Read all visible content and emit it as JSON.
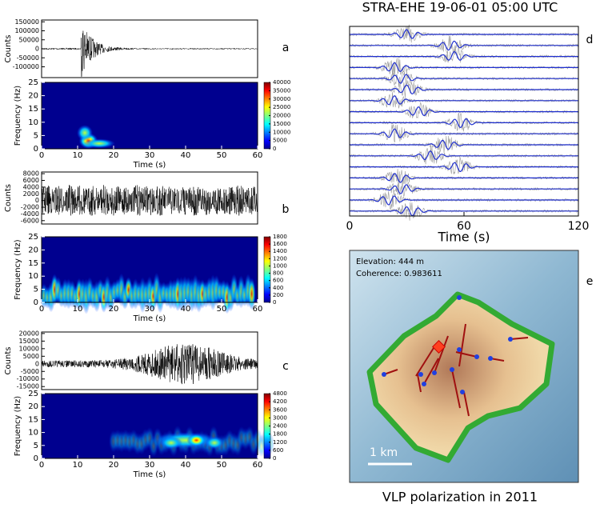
{
  "panels": [
    {
      "label": "a",
      "waveform": {
        "ylabel": "Counts",
        "ylim": [
          -160000,
          160000
        ],
        "yticks": [
          150000,
          100000,
          50000,
          0,
          -50000,
          -100000
        ]
      },
      "spectrogram": {
        "ylabel": "Frequency (Hz)",
        "xlabel": "Time (s)",
        "xlim": [
          0,
          60
        ],
        "ylim": [
          0,
          25
        ],
        "xticks": [
          0,
          10,
          20,
          30,
          40,
          50,
          60
        ],
        "yticks": [
          0,
          5,
          10,
          15,
          20,
          25
        ],
        "clim": [
          0,
          40000
        ],
        "cticks": [
          0,
          5000,
          10000,
          15000,
          20000,
          25000,
          30000,
          35000,
          40000
        ]
      }
    },
    {
      "label": "b",
      "waveform": {
        "ylabel": "Counts",
        "ylim": [
          -7000,
          8500
        ],
        "yticks": [
          8000,
          6000,
          4000,
          2000,
          0,
          -2000,
          -4000,
          -6000
        ]
      },
      "spectrogram": {
        "ylabel": "Frequency (Hz)",
        "xlabel": "Time (s)",
        "xlim": [
          0,
          60
        ],
        "ylim": [
          0,
          25
        ],
        "xticks": [
          0,
          10,
          20,
          30,
          40,
          50,
          60
        ],
        "yticks": [
          0,
          5,
          10,
          15,
          20,
          25
        ],
        "clim": [
          0,
          1800
        ],
        "cticks": [
          0,
          200,
          400,
          600,
          800,
          1000,
          1200,
          1400,
          1600,
          1800
        ]
      }
    },
    {
      "label": "c",
      "waveform": {
        "ylabel": "Counts",
        "ylim": [
          -17000,
          21000
        ],
        "yticks": [
          20000,
          15000,
          10000,
          5000,
          0,
          -5000,
          -10000,
          -15000
        ]
      },
      "spectrogram": {
        "ylabel": "Frequency (Hz)",
        "xlabel": "Time (s)",
        "xlim": [
          0,
          60
        ],
        "ylim": [
          0,
          25
        ],
        "xticks": [
          0,
          10,
          20,
          30,
          40,
          50,
          60
        ],
        "yticks": [
          0,
          5,
          10,
          15,
          20,
          25
        ],
        "clim": [
          0,
          4800
        ],
        "cticks": [
          0,
          600,
          1200,
          1800,
          2400,
          3000,
          3600,
          4200,
          4800
        ]
      }
    }
  ],
  "section": {
    "label": "d",
    "title": "STRA-EHE 19-06-01 05:00 UTC",
    "xlabel": "Time (s)",
    "xlim": [
      0,
      120
    ],
    "xticks": [
      0,
      60,
      120
    ]
  },
  "map": {
    "label": "e",
    "elevation": "Elevation: 444 m",
    "coherence": "Coherence: 0.983611",
    "scale": "1 km",
    "caption": "VLP polarization in 2011"
  }
}
